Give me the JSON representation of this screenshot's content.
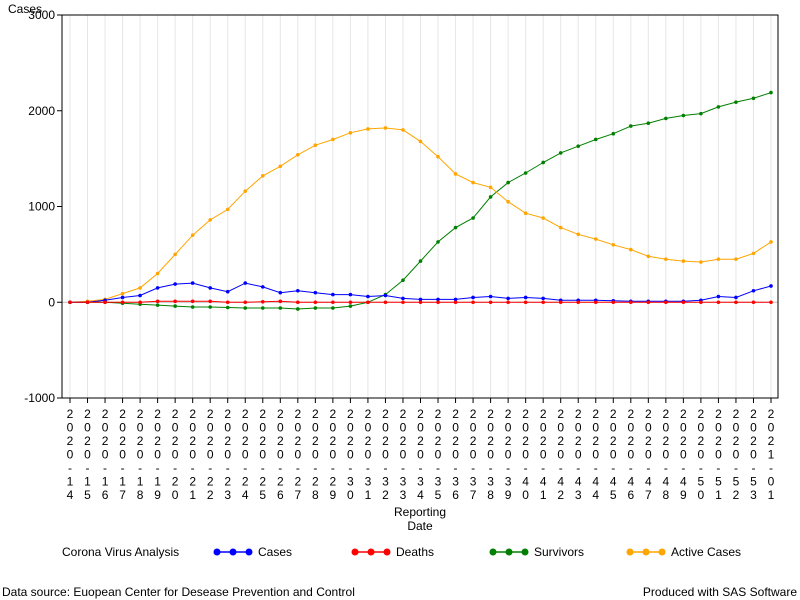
{
  "chart_data": {
    "type": "line",
    "ylabel": "Cases",
    "xlabel_lines": [
      "Reporting",
      "Date"
    ],
    "ylim": [
      -1000,
      3000
    ],
    "yticks": [
      -1000,
      0,
      1000,
      2000,
      3000
    ],
    "grid": "vertical",
    "x_labels": [
      [
        "2",
        "0",
        "2",
        "0",
        "-",
        "1",
        "4"
      ],
      [
        "2",
        "0",
        "2",
        "0",
        "-",
        "1",
        "5"
      ],
      [
        "2",
        "0",
        "2",
        "0",
        "-",
        "1",
        "6"
      ],
      [
        "2",
        "0",
        "2",
        "0",
        "-",
        "1",
        "7"
      ],
      [
        "2",
        "0",
        "2",
        "0",
        "-",
        "1",
        "8"
      ],
      [
        "2",
        "0",
        "2",
        "0",
        "-",
        "1",
        "9"
      ],
      [
        "2",
        "0",
        "2",
        "0",
        "-",
        "2",
        "0"
      ],
      [
        "2",
        "0",
        "2",
        "0",
        "-",
        "2",
        "1"
      ],
      [
        "2",
        "0",
        "2",
        "0",
        "-",
        "2",
        "2"
      ],
      [
        "2",
        "0",
        "2",
        "0",
        "-",
        "2",
        "3"
      ],
      [
        "2",
        "0",
        "2",
        "0",
        "-",
        "2",
        "4"
      ],
      [
        "2",
        "0",
        "2",
        "0",
        "-",
        "2",
        "5"
      ],
      [
        "2",
        "0",
        "2",
        "0",
        "-",
        "2",
        "6"
      ],
      [
        "2",
        "0",
        "2",
        "0",
        "-",
        "2",
        "7"
      ],
      [
        "2",
        "0",
        "2",
        "0",
        "-",
        "2",
        "8"
      ],
      [
        "2",
        "0",
        "2",
        "0",
        "-",
        "2",
        "9"
      ],
      [
        "2",
        "0",
        "2",
        "0",
        "-",
        "3",
        "0"
      ],
      [
        "2",
        "0",
        "2",
        "0",
        "-",
        "3",
        "1"
      ],
      [
        "2",
        "0",
        "2",
        "0",
        "-",
        "3",
        "2"
      ],
      [
        "2",
        "0",
        "2",
        "0",
        "-",
        "3",
        "3"
      ],
      [
        "2",
        "0",
        "2",
        "0",
        "-",
        "3",
        "4"
      ],
      [
        "2",
        "0",
        "2",
        "0",
        "-",
        "3",
        "5"
      ],
      [
        "2",
        "0",
        "2",
        "0",
        "-",
        "3",
        "6"
      ],
      [
        "2",
        "0",
        "2",
        "0",
        "-",
        "3",
        "7"
      ],
      [
        "2",
        "0",
        "2",
        "0",
        "-",
        "3",
        "8"
      ],
      [
        "2",
        "0",
        "2",
        "0",
        "-",
        "3",
        "9"
      ],
      [
        "2",
        "0",
        "2",
        "0",
        "-",
        "4",
        "0"
      ],
      [
        "2",
        "0",
        "2",
        "0",
        "-",
        "4",
        "1"
      ],
      [
        "2",
        "0",
        "2",
        "0",
        "-",
        "4",
        "2"
      ],
      [
        "2",
        "0",
        "2",
        "0",
        "-",
        "4",
        "3"
      ],
      [
        "2",
        "0",
        "2",
        "0",
        "-",
        "4",
        "4"
      ],
      [
        "2",
        "0",
        "2",
        "0",
        "-",
        "4",
        "5"
      ],
      [
        "2",
        "0",
        "2",
        "0",
        "-",
        "4",
        "6"
      ],
      [
        "2",
        "0",
        "2",
        "0",
        "-",
        "4",
        "7"
      ],
      [
        "2",
        "0",
        "2",
        "0",
        "-",
        "4",
        "8"
      ],
      [
        "2",
        "0",
        "2",
        "0",
        "-",
        "4",
        "9"
      ],
      [
        "2",
        "0",
        "2",
        "0",
        "-",
        "5",
        "0"
      ],
      [
        "2",
        "0",
        "2",
        "0",
        "-",
        "5",
        "1"
      ],
      [
        "2",
        "0",
        "2",
        "0",
        "-",
        "5",
        "2"
      ],
      [
        "2",
        "0",
        "2",
        "0",
        "-",
        "5",
        "3"
      ],
      [
        "2",
        "0",
        "2",
        "1",
        "-",
        "0",
        "1"
      ]
    ],
    "series": [
      {
        "name": "Cases",
        "color": "#0000ff",
        "values": [
          0,
          0,
          20,
          50,
          70,
          150,
          190,
          200,
          150,
          110,
          200,
          160,
          100,
          120,
          100,
          80,
          80,
          60,
          70,
          40,
          30,
          30,
          30,
          50,
          60,
          40,
          50,
          40,
          20,
          20,
          20,
          15,
          10,
          10,
          10,
          10,
          20,
          60,
          50,
          120,
          170
        ]
      },
      {
        "name": "Deaths",
        "color": "#ff0000",
        "values": [
          0,
          0,
          0,
          0,
          0,
          10,
          10,
          10,
          10,
          0,
          0,
          5,
          10,
          0,
          0,
          0,
          0,
          0,
          0,
          0,
          0,
          0,
          0,
          0,
          0,
          0,
          0,
          0,
          0,
          0,
          0,
          0,
          0,
          0,
          0,
          0,
          0,
          0,
          0,
          0,
          0
        ]
      },
      {
        "name": "Survivors",
        "color": "#008000",
        "values": [
          0,
          0,
          0,
          -10,
          -20,
          -30,
          -40,
          -50,
          -50,
          -55,
          -60,
          -60,
          -60,
          -70,
          -60,
          -60,
          -40,
          0,
          80,
          230,
          430,
          630,
          780,
          880,
          1100,
          1250,
          1350,
          1460,
          1560,
          1630,
          1700,
          1760,
          1840,
          1870,
          1920,
          1950,
          1970,
          2040,
          2090,
          2130,
          2190
        ]
      },
      {
        "name": "Active Cases",
        "color": "#ffa500",
        "values": [
          0,
          10,
          30,
          90,
          150,
          300,
          500,
          700,
          860,
          970,
          1160,
          1320,
          1420,
          1540,
          1640,
          1700,
          1770,
          1810,
          1820,
          1800,
          1680,
          1520,
          1340,
          1250,
          1200,
          1050,
          930,
          880,
          780,
          710,
          660,
          600,
          550,
          480,
          450,
          430,
          420,
          450,
          450,
          510,
          630
        ]
      }
    ],
    "legend": {
      "title": "Corona Virus Analysis",
      "placement": "bottom"
    }
  },
  "footer": {
    "source": "Data source: Euopean Center for Desease Prevention and Control",
    "produced": "Produced with SAS Software"
  }
}
